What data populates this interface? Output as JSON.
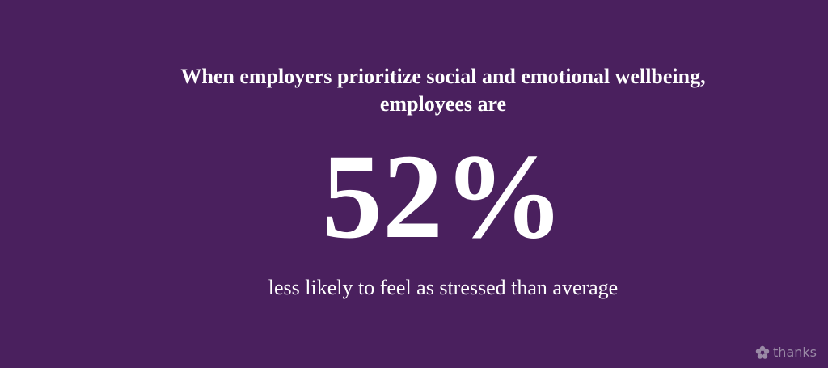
{
  "headline": {
    "line1": "When employers prioritize social and emotional wellbeing,",
    "line2": "employees are"
  },
  "stat": "52%",
  "caption": "less likely to feel as stressed than average",
  "logo": "thanks"
}
